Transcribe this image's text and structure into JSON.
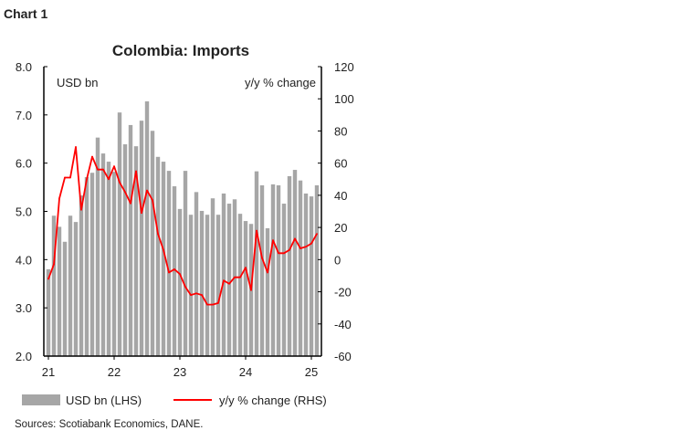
{
  "chart_label": "Chart 1",
  "sources": "Sources: Scotiabank Economics, DANE.",
  "chart_data": {
    "type": "bar+line",
    "title": "Colombia: Imports",
    "left_axis": {
      "label": "USD bn",
      "ylim": [
        2.0,
        8.0
      ],
      "ticks": [
        "2.0",
        "3.0",
        "4.0",
        "5.0",
        "6.0",
        "7.0",
        "8.0"
      ]
    },
    "right_axis": {
      "label": "y/y % change",
      "ylim": [
        -60,
        120
      ],
      "ticks": [
        "-60",
        "-40",
        "-20",
        "0",
        "20",
        "40",
        "60",
        "80",
        "100",
        "120"
      ]
    },
    "x_ticks": [
      "21",
      "22",
      "23",
      "24",
      "25"
    ],
    "x_start": "2021-01",
    "frequency": "monthly",
    "grid": false,
    "legend_position": "bottom",
    "series": [
      {
        "name": "USD bn (LHS)",
        "type": "bar",
        "axis": "left",
        "color": "#a6a6a6",
        "values": [
          3.8,
          4.91,
          4.68,
          4.37,
          4.91,
          4.78,
          5.33,
          5.71,
          5.8,
          6.53,
          6.2,
          6.03,
          5.82,
          7.05,
          6.39,
          6.79,
          6.35,
          6.88,
          7.28,
          6.67,
          6.13,
          6.03,
          5.84,
          5.52,
          5.05,
          5.84,
          4.93,
          5.4,
          5.01,
          4.93,
          5.27,
          4.93,
          5.37,
          5.16,
          5.25,
          4.95,
          4.8,
          4.74,
          5.83,
          5.54,
          4.65,
          5.56,
          5.54,
          5.16,
          5.73,
          5.86,
          5.64,
          5.37,
          5.31,
          5.54
        ]
      },
      {
        "name": "y/y % change (RHS)",
        "type": "line",
        "axis": "right",
        "color": "#ff0000",
        "values": [
          -12,
          -3,
          38,
          51,
          51,
          70,
          31,
          50,
          64,
          56,
          56,
          50,
          58,
          48,
          42,
          35,
          55,
          29,
          43,
          37,
          16,
          6,
          -8,
          -6,
          -9,
          -17,
          -22,
          -21,
          -22,
          -28,
          -28,
          -27,
          -13,
          -15,
          -11,
          -11,
          -5,
          -19,
          18,
          1,
          -8,
          12,
          4,
          4,
          6,
          13,
          7,
          8,
          10,
          16
        ]
      }
    ]
  }
}
